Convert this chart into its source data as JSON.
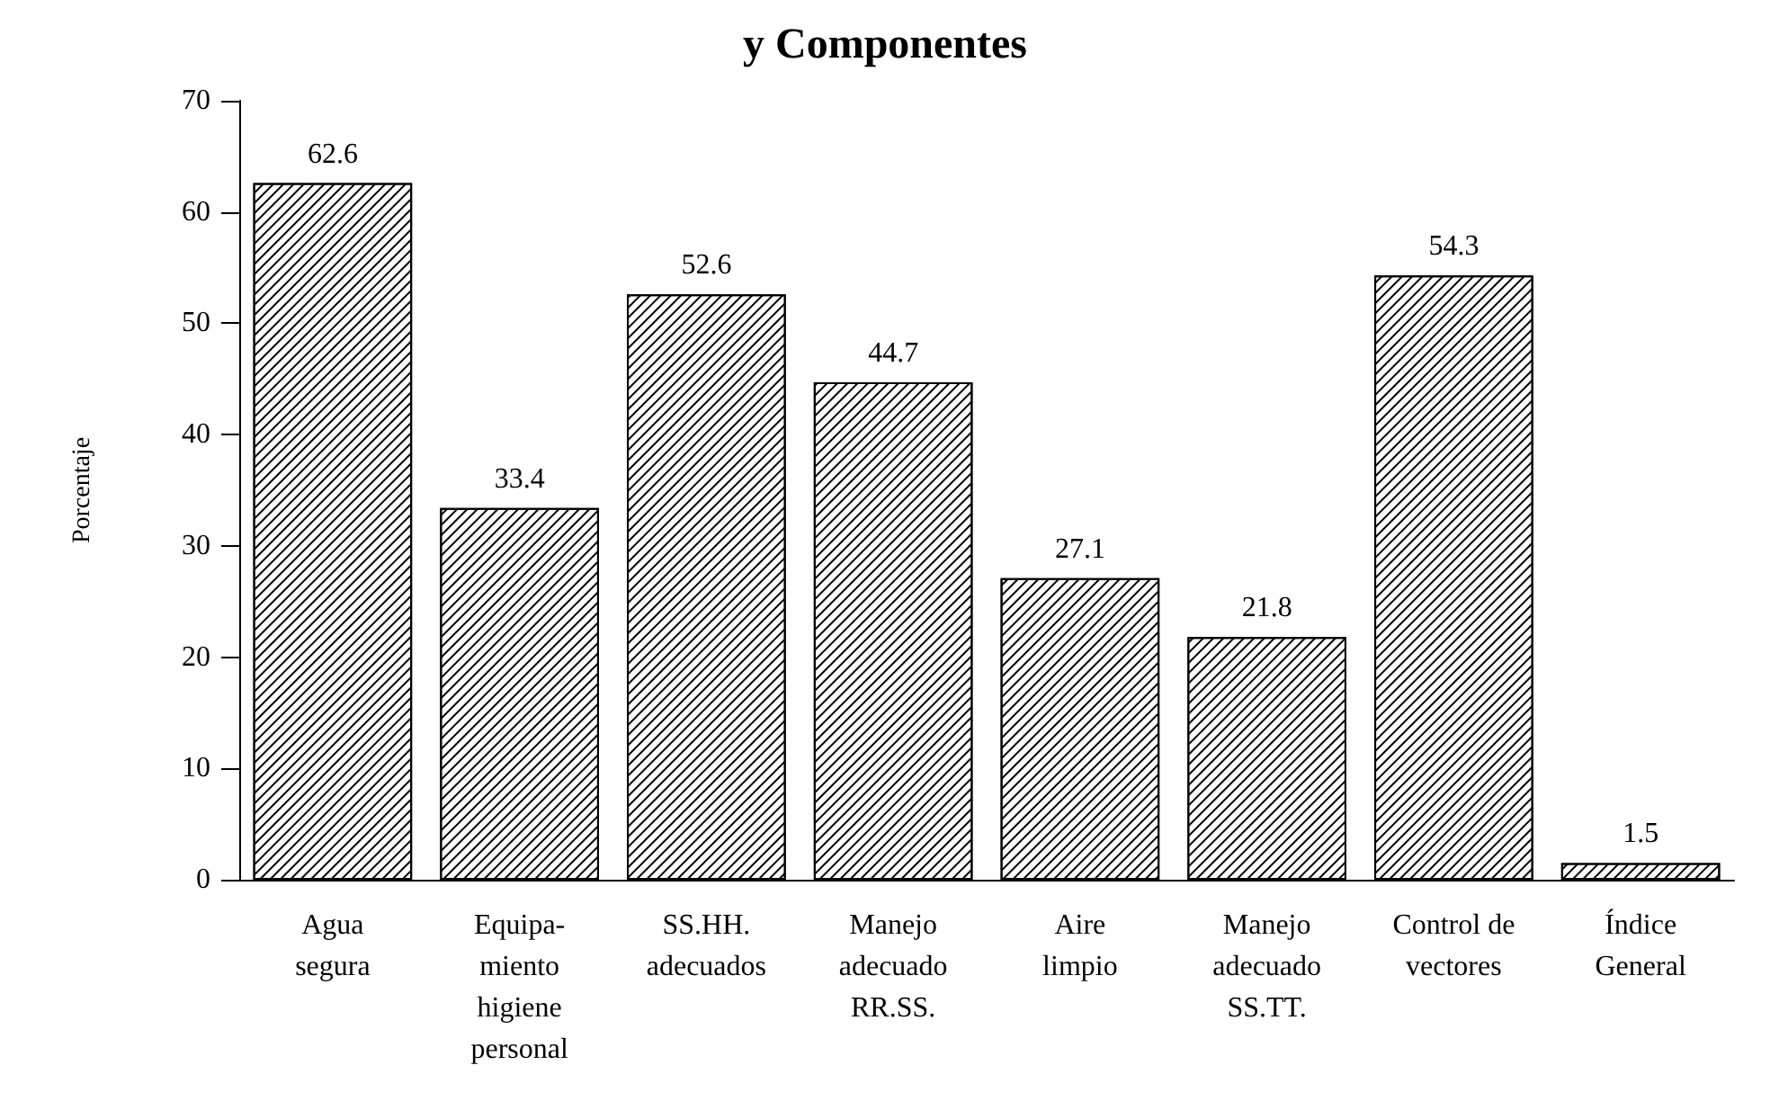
{
  "chart_data": {
    "type": "bar",
    "title": "y Componentes",
    "ylabel": "Porcentaje",
    "categories": [
      "Agua\nsegura",
      "Equipa-\nmiento\nhigiene\npersonal",
      "SS.HH.\nadecuados",
      "Manejo\nadecuado\nRR.SS.",
      "Aire\nlimpio",
      "Manejo\nadecuado\nSS.TT.",
      "Control de\nvectores",
      "Índice\nGeneral"
    ],
    "values": [
      62.6,
      33.4,
      52.6,
      44.7,
      27.1,
      21.8,
      54.3,
      1.5
    ],
    "color": "#ffffff",
    "ylim": [
      0,
      70
    ],
    "yticks": [
      0,
      10,
      20,
      30,
      40,
      50,
      60,
      70
    ],
    "data_labels": true,
    "grid": false
  }
}
